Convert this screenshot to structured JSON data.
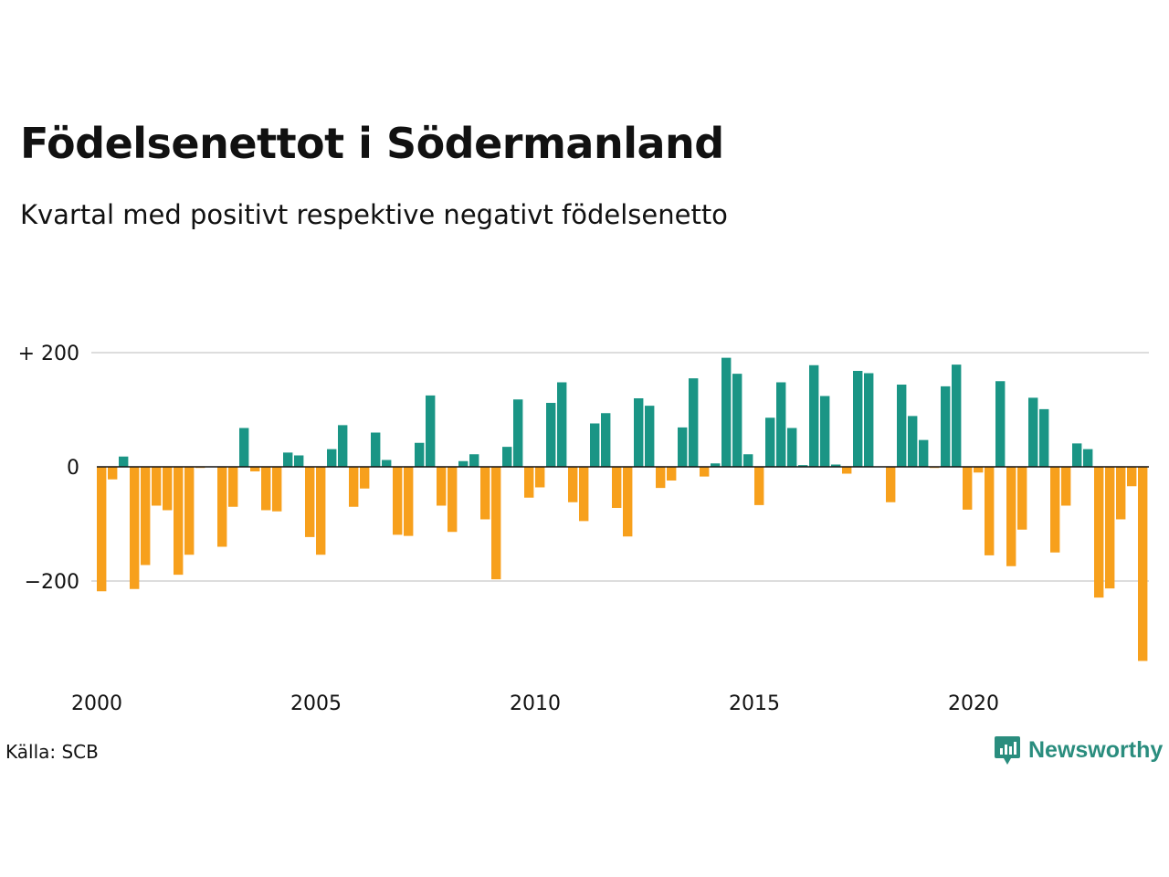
{
  "title": "Födelsenettot i Södermanland",
  "subtitle": "Kvartal med positivt respektive negativt födelsenetto",
  "source": "Källa: SCB",
  "brand": "Newsworthy",
  "colors": {
    "positive": "#1a9585",
    "negative": "#f7a01c",
    "grid": "#dddddd",
    "axis": "#111111",
    "brand": "#2a8d7e"
  },
  "chart_data": {
    "type": "bar",
    "title": "Födelsenettot i Södermanland",
    "subtitle": "Kvartal med positivt respektive negativt födelsenetto",
    "x_ticks": [
      "2000",
      "2005",
      "2010",
      "2015",
      "2020"
    ],
    "y_ticks": [
      {
        "value": 200,
        "label": "+ 200"
      },
      {
        "value": 0,
        "label": "0"
      },
      {
        "value": -200,
        "label": "−200"
      }
    ],
    "ylim": [
      -345,
      205
    ],
    "start_year": 2000,
    "grid": true,
    "quarters": [
      "2000 K1",
      "2000 K2",
      "2000 K3",
      "2000 K4",
      "2001 K1",
      "2001 K2",
      "2001 K3",
      "2001 K4",
      "2002 K1",
      "2002 K2",
      "2002 K3",
      "2002 K4",
      "2003 K1",
      "2003 K2",
      "2003 K3",
      "2003 K4",
      "2004 K1",
      "2004 K2",
      "2004 K3",
      "2004 K4",
      "2005 K1",
      "2005 K2",
      "2005 K3",
      "2005 K4",
      "2006 K1",
      "2006 K2",
      "2006 K3",
      "2006 K4",
      "2007 K1",
      "2007 K2",
      "2007 K3",
      "2007 K4",
      "2008 K1",
      "2008 K2",
      "2008 K3",
      "2008 K4",
      "2009 K1",
      "2009 K2",
      "2009 K3",
      "2009 K4",
      "2010 K1",
      "2010 K2",
      "2010 K3",
      "2010 K4",
      "2011 K1",
      "2011 K2",
      "2011 K3",
      "2011 K4",
      "2012 K1",
      "2012 K2",
      "2012 K3",
      "2012 K4",
      "2013 K1",
      "2013 K2",
      "2013 K3",
      "2013 K4",
      "2014 K1",
      "2014 K2",
      "2014 K3",
      "2014 K4",
      "2015 K1",
      "2015 K2",
      "2015 K3",
      "2015 K4",
      "2016 K1",
      "2016 K2",
      "2016 K3",
      "2016 K4",
      "2017 K1",
      "2017 K2",
      "2017 K3",
      "2017 K4",
      "2018 K1",
      "2018 K2",
      "2018 K3",
      "2018 K4",
      "2019 K1",
      "2019 K2",
      "2019 K3",
      "2019 K4",
      "2020 K1",
      "2020 K2",
      "2020 K3",
      "2020 K4",
      "2021 K1",
      "2021 K2",
      "2021 K3",
      "2021 K4",
      "2022 K1",
      "2022 K2",
      "2022 K3",
      "2022 K4",
      "2023 K1",
      "2023 K2",
      "2023 K3",
      "2023 K4"
    ],
    "values": [
      -218,
      -22,
      18,
      -214,
      -172,
      -68,
      -76,
      -189,
      -154,
      -2,
      0,
      -140,
      -70,
      68,
      -8,
      -76,
      -78,
      25,
      20,
      -123,
      -154,
      31,
      73,
      -70,
      -38,
      60,
      12,
      -119,
      -121,
      42,
      125,
      -68,
      -114,
      10,
      22,
      -92,
      -197,
      35,
      118,
      -54,
      -36,
      112,
      148,
      -62,
      -95,
      76,
      94,
      -72,
      -122,
      120,
      107,
      -37,
      -24,
      69,
      155,
      -17,
      6,
      191,
      163,
      22,
      -67,
      86,
      148,
      68,
      3,
      178,
      124,
      4,
      -12,
      168,
      164,
      0,
      -62,
      144,
      89,
      47,
      -2,
      141,
      179,
      -75,
      -10,
      -155,
      150,
      -174,
      -110,
      121,
      101,
      -150,
      -68,
      41,
      31,
      -229,
      -213,
      -92,
      -34,
      -340
    ]
  }
}
